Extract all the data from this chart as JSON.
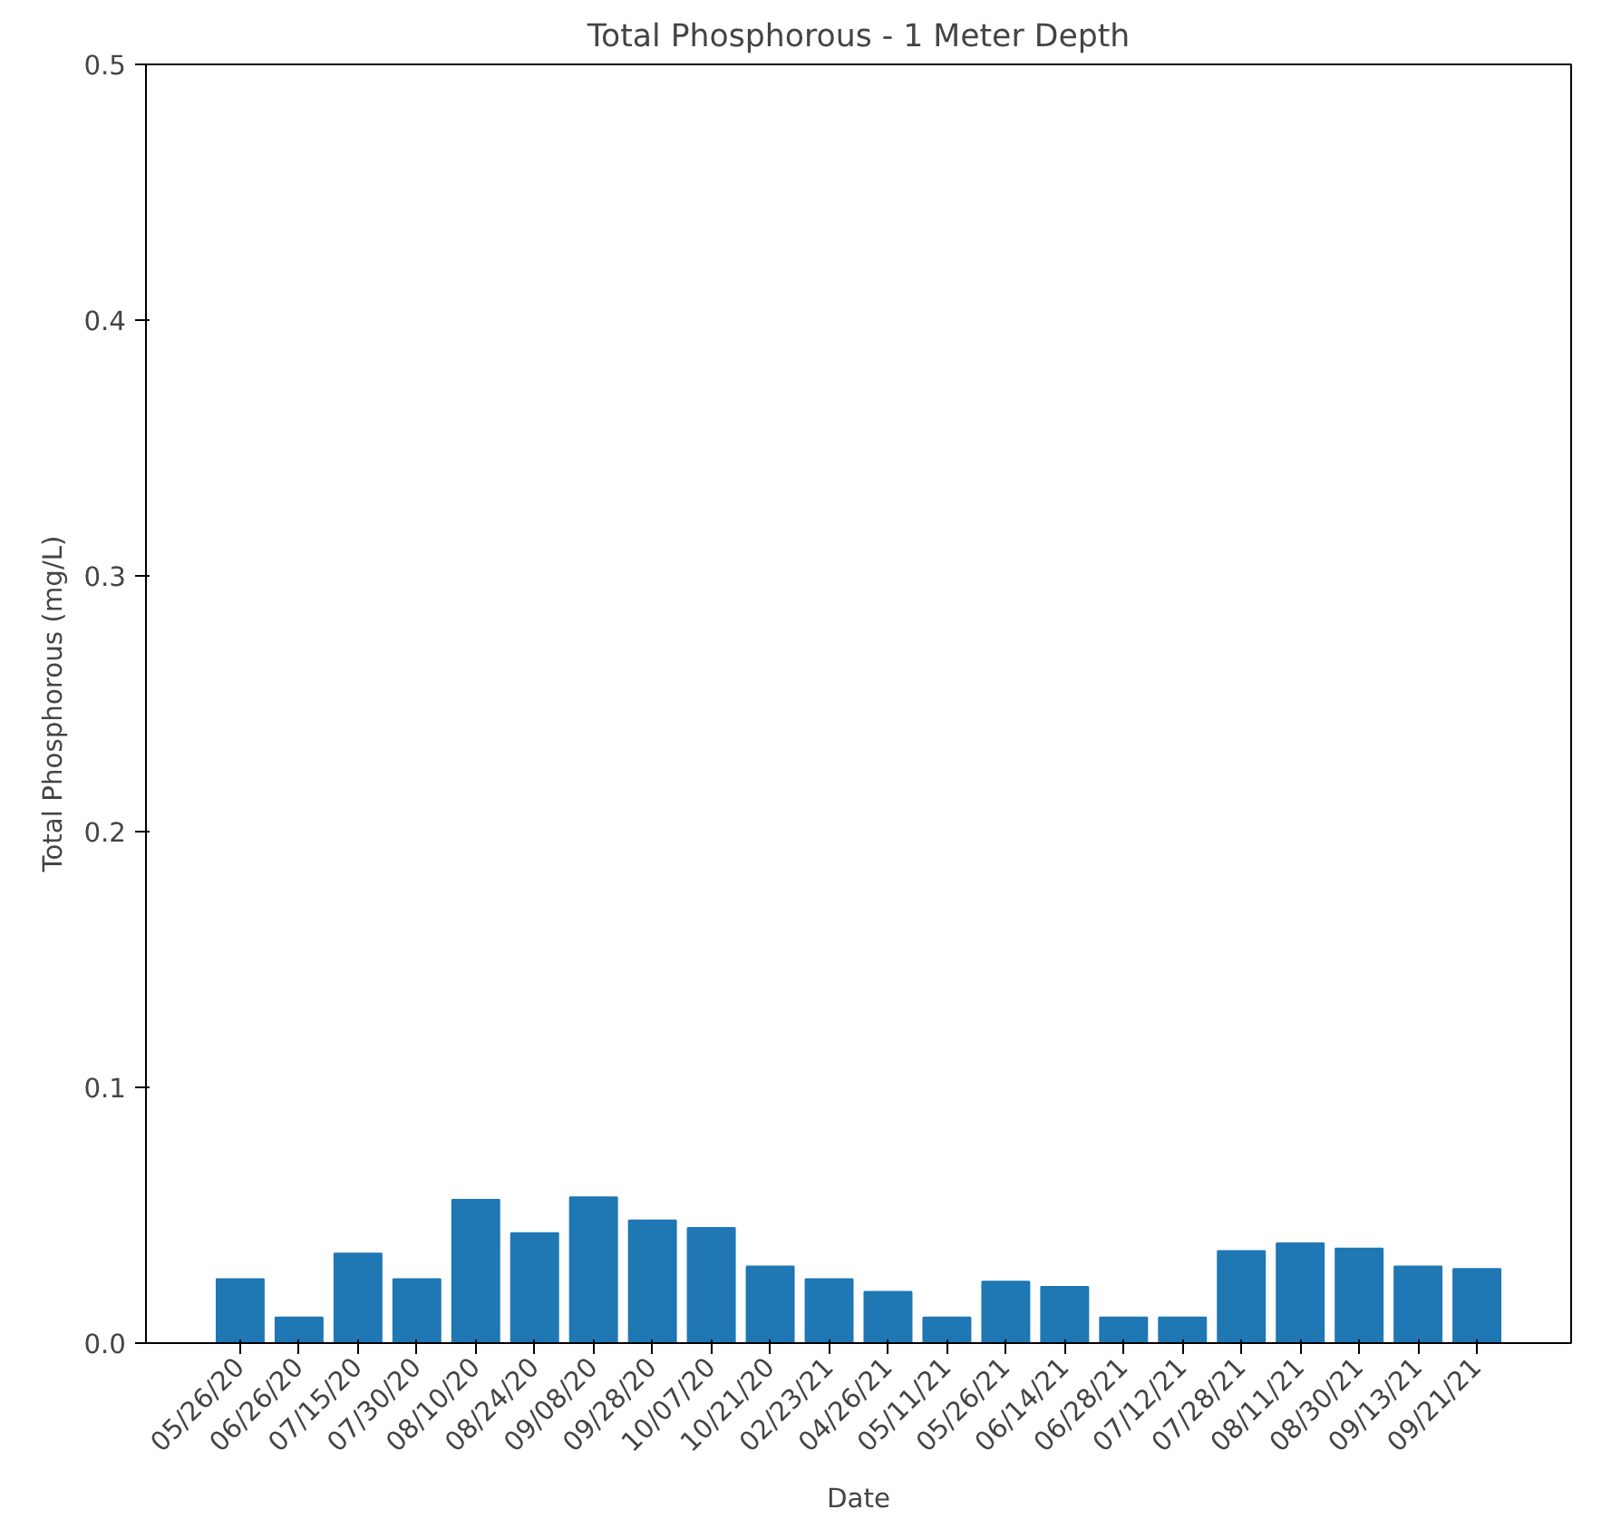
{
  "chart_data": {
    "type": "bar",
    "title": "Total Phosphorous - 1 Meter Depth",
    "xlabel": "Date",
    "ylabel": "Total Phosphorous (mg/L)",
    "categories": [
      "05/26/20",
      "06/26/20",
      "07/15/20",
      "07/30/20",
      "08/10/20",
      "08/24/20",
      "09/08/20",
      "09/28/20",
      "10/07/20",
      "10/21/20",
      "02/23/21",
      "04/26/21",
      "05/11/21",
      "05/26/21",
      "06/14/21",
      "06/28/21",
      "07/12/21",
      "07/28/21",
      "08/11/21",
      "08/30/21",
      "09/13/21",
      "09/21/21"
    ],
    "values": [
      0.025,
      0.01,
      0.035,
      0.025,
      0.056,
      0.043,
      0.057,
      0.048,
      0.045,
      0.03,
      0.025,
      0.02,
      0.01,
      0.024,
      0.022,
      0.01,
      0.01,
      0.036,
      0.039,
      0.037,
      0.03,
      0.029
    ],
    "color": "#1f77b4",
    "ylim": [
      0,
      0.5
    ],
    "yticks": [
      {
        "value": 0,
        "label": "0.0"
      },
      0.1,
      0.2,
      0.3,
      0.4,
      0.5
    ],
    "grid": false
  }
}
